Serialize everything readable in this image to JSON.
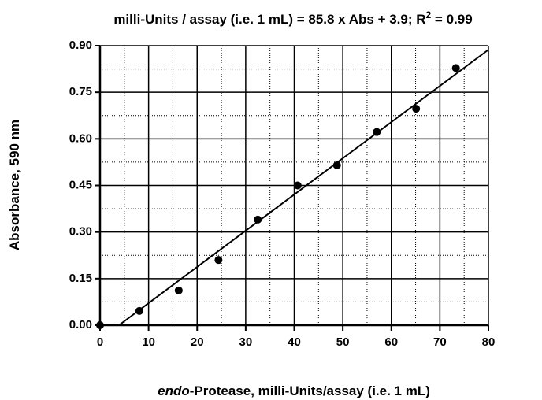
{
  "chart_data": {
    "type": "scatter",
    "title": [
      "milli-Units / assay (i.e. 1 mL) = 85.8 x Abs + 3.9; R",
      "2",
      " = 0.99"
    ],
    "x_label": [
      "endo",
      "-Protease, milli-Units/assay (i.e. 1 mL)"
    ],
    "y_label": "Absorbance, 590 nm",
    "x": [
      0,
      8.1,
      16.2,
      24.4,
      32.5,
      40.7,
      48.8,
      57,
      65.1,
      73.3
    ],
    "values": [
      0,
      0.046,
      0.112,
      0.21,
      0.34,
      0.45,
      0.515,
      0.622,
      0.697,
      0.828
    ],
    "color": "#000000",
    "fit_line": {
      "x": [
        3.9,
        80
      ],
      "y": [
        0,
        0.887
      ]
    },
    "xlim": [
      0,
      80
    ],
    "ylim": [
      0,
      0.9
    ],
    "xticks": [
      0,
      10,
      20,
      30,
      40,
      50,
      60,
      70,
      80
    ],
    "yticks": [
      {
        "value": 0,
        "label": "0.00"
      },
      {
        "value": 0.15,
        "label": "0.15"
      },
      {
        "value": 0.3,
        "label": "0.30"
      },
      {
        "value": 0.45,
        "label": "0.45"
      },
      {
        "value": 0.6,
        "label": "0.60"
      },
      {
        "value": 0.75,
        "label": "0.75"
      },
      {
        "value": 0.9,
        "label": "0.90"
      }
    ],
    "xminor": [
      5,
      15,
      25,
      35,
      45,
      55,
      65,
      75
    ],
    "yminor": [
      0.075,
      0.225,
      0.375,
      0.525,
      0.675,
      0.825
    ],
    "grid": true
  }
}
